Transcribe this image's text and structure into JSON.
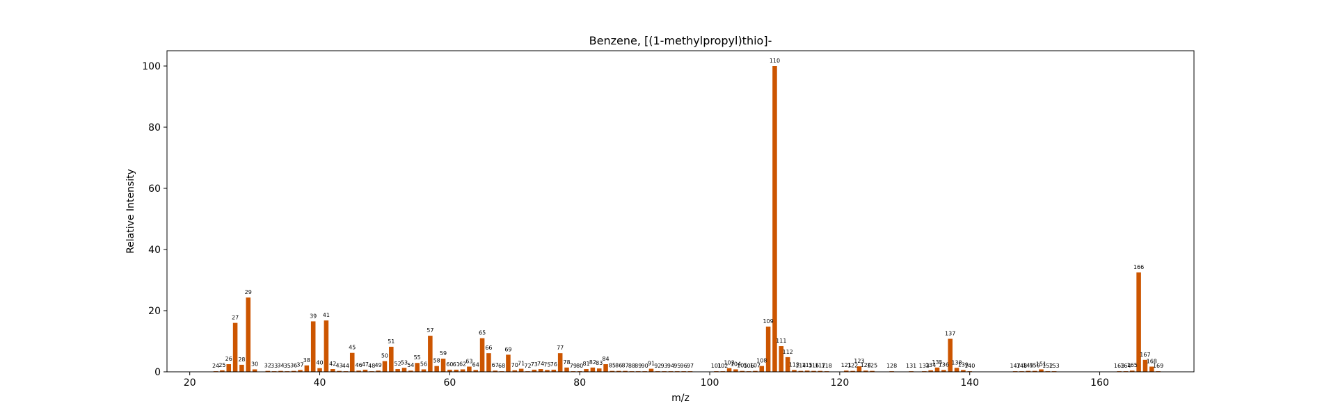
{
  "chart_data": {
    "type": "bar",
    "title": "Benzene, [(1-methylpropyl)thio]-",
    "xlabel": "m/z",
    "ylabel": "Relative Intensity",
    "xlim": [
      16.5,
      174.5
    ],
    "ylim": [
      0,
      105
    ],
    "xticks": [
      20,
      40,
      60,
      80,
      100,
      120,
      140,
      160
    ],
    "yticks": [
      0,
      20,
      40,
      60,
      80,
      100
    ],
    "grid": false,
    "bar_color": "#cc5500",
    "peaks": [
      {
        "x": 24,
        "y": 0.2
      },
      {
        "x": 25,
        "y": 0.5
      },
      {
        "x": 26,
        "y": 2.5
      },
      {
        "x": 27,
        "y": 16
      },
      {
        "x": 28,
        "y": 2.3
      },
      {
        "x": 29,
        "y": 24.3
      },
      {
        "x": 30,
        "y": 0.8
      },
      {
        "x": 32,
        "y": 0.3
      },
      {
        "x": 33,
        "y": 0.2
      },
      {
        "x": 34,
        "y": 0.3
      },
      {
        "x": 35,
        "y": 0.2
      },
      {
        "x": 36,
        "y": 0.3
      },
      {
        "x": 37,
        "y": 0.6
      },
      {
        "x": 38,
        "y": 2.1
      },
      {
        "x": 39,
        "y": 16.5
      },
      {
        "x": 40,
        "y": 1.2
      },
      {
        "x": 41,
        "y": 16.8
      },
      {
        "x": 42,
        "y": 0.9
      },
      {
        "x": 43,
        "y": 0.3
      },
      {
        "x": 44,
        "y": 0.2
      },
      {
        "x": 45,
        "y": 6.2
      },
      {
        "x": 46,
        "y": 0.4
      },
      {
        "x": 47,
        "y": 0.7
      },
      {
        "x": 48,
        "y": 0.2
      },
      {
        "x": 49,
        "y": 0.4
      },
      {
        "x": 50,
        "y": 3.5
      },
      {
        "x": 51,
        "y": 8.2
      },
      {
        "x": 52,
        "y": 0.9
      },
      {
        "x": 53,
        "y": 1.3
      },
      {
        "x": 54,
        "y": 0.4
      },
      {
        "x": 55,
        "y": 2.9
      },
      {
        "x": 56,
        "y": 0.8
      },
      {
        "x": 57,
        "y": 11.8
      },
      {
        "x": 58,
        "y": 1.9
      },
      {
        "x": 59,
        "y": 4.3
      },
      {
        "x": 60,
        "y": 0.7
      },
      {
        "x": 61,
        "y": 0.7
      },
      {
        "x": 62,
        "y": 0.8
      },
      {
        "x": 63,
        "y": 1.7
      },
      {
        "x": 64,
        "y": 0.6
      },
      {
        "x": 65,
        "y": 11.0
      },
      {
        "x": 66,
        "y": 6.1
      },
      {
        "x": 67,
        "y": 0.4
      },
      {
        "x": 68,
        "y": 0.2
      },
      {
        "x": 69,
        "y": 5.6
      },
      {
        "x": 70,
        "y": 0.5
      },
      {
        "x": 71,
        "y": 1.0
      },
      {
        "x": 72,
        "y": 0.2
      },
      {
        "x": 73,
        "y": 0.7
      },
      {
        "x": 74,
        "y": 0.9
      },
      {
        "x": 75,
        "y": 0.6
      },
      {
        "x": 76,
        "y": 0.7
      },
      {
        "x": 77,
        "y": 6.1
      },
      {
        "x": 78,
        "y": 1.4
      },
      {
        "x": 79,
        "y": 0.2
      },
      {
        "x": 80,
        "y": 0.2
      },
      {
        "x": 81,
        "y": 0.9
      },
      {
        "x": 82,
        "y": 1.4
      },
      {
        "x": 83,
        "y": 1.1
      },
      {
        "x": 84,
        "y": 2.5
      },
      {
        "x": 85,
        "y": 0.3
      },
      {
        "x": 86,
        "y": 0.3
      },
      {
        "x": 87,
        "y": 0.3
      },
      {
        "x": 88,
        "y": 0.2
      },
      {
        "x": 89,
        "y": 0.2
      },
      {
        "x": 90,
        "y": 0.2
      },
      {
        "x": 91,
        "y": 1.0
      },
      {
        "x": 92,
        "y": 0.2
      },
      {
        "x": 93,
        "y": 0.2
      },
      {
        "x": 94,
        "y": 0.2
      },
      {
        "x": 95,
        "y": 0.2
      },
      {
        "x": 96,
        "y": 0.2
      },
      {
        "x": 97,
        "y": 0.2
      },
      {
        "x": 101,
        "y": 0.2
      },
      {
        "x": 102,
        "y": 0.2
      },
      {
        "x": 103,
        "y": 1.2
      },
      {
        "x": 104,
        "y": 0.8
      },
      {
        "x": 105,
        "y": 0.3
      },
      {
        "x": 106,
        "y": 0.2
      },
      {
        "x": 107,
        "y": 0.3
      },
      {
        "x": 108,
        "y": 1.9
      },
      {
        "x": 109,
        "y": 14.8
      },
      {
        "x": 110,
        "y": 100
      },
      {
        "x": 111,
        "y": 8.4
      },
      {
        "x": 112,
        "y": 4.8
      },
      {
        "x": 113,
        "y": 0.6
      },
      {
        "x": 114,
        "y": 0.3
      },
      {
        "x": 115,
        "y": 0.4
      },
      {
        "x": 116,
        "y": 0.3
      },
      {
        "x": 117,
        "y": 0.3
      },
      {
        "x": 118,
        "y": 0.2
      },
      {
        "x": 121,
        "y": 0.4
      },
      {
        "x": 122,
        "y": 0.3
      },
      {
        "x": 123,
        "y": 1.8
      },
      {
        "x": 124,
        "y": 0.4
      },
      {
        "x": 125,
        "y": 0.3
      },
      {
        "x": 128,
        "y": 0.2
      },
      {
        "x": 131,
        "y": 0.2
      },
      {
        "x": 133,
        "y": 0.2
      },
      {
        "x": 134,
        "y": 0.5
      },
      {
        "x": 135,
        "y": 1.4
      },
      {
        "x": 136,
        "y": 0.6
      },
      {
        "x": 137,
        "y": 10.8
      },
      {
        "x": 138,
        "y": 1.3
      },
      {
        "x": 139,
        "y": 0.6
      },
      {
        "x": 140,
        "y": 0.2
      },
      {
        "x": 147,
        "y": 0.2
      },
      {
        "x": 148,
        "y": 0.2
      },
      {
        "x": 149,
        "y": 0.3
      },
      {
        "x": 150,
        "y": 0.3
      },
      {
        "x": 151,
        "y": 0.8
      },
      {
        "x": 152,
        "y": 0.2
      },
      {
        "x": 153,
        "y": 0.2
      },
      {
        "x": 163,
        "y": 0.2
      },
      {
        "x": 164,
        "y": 0.2
      },
      {
        "x": 165,
        "y": 0.4
      },
      {
        "x": 166,
        "y": 32.5
      },
      {
        "x": 167,
        "y": 3.9
      },
      {
        "x": 168,
        "y": 1.7
      },
      {
        "x": 169,
        "y": 0.2
      }
    ]
  }
}
